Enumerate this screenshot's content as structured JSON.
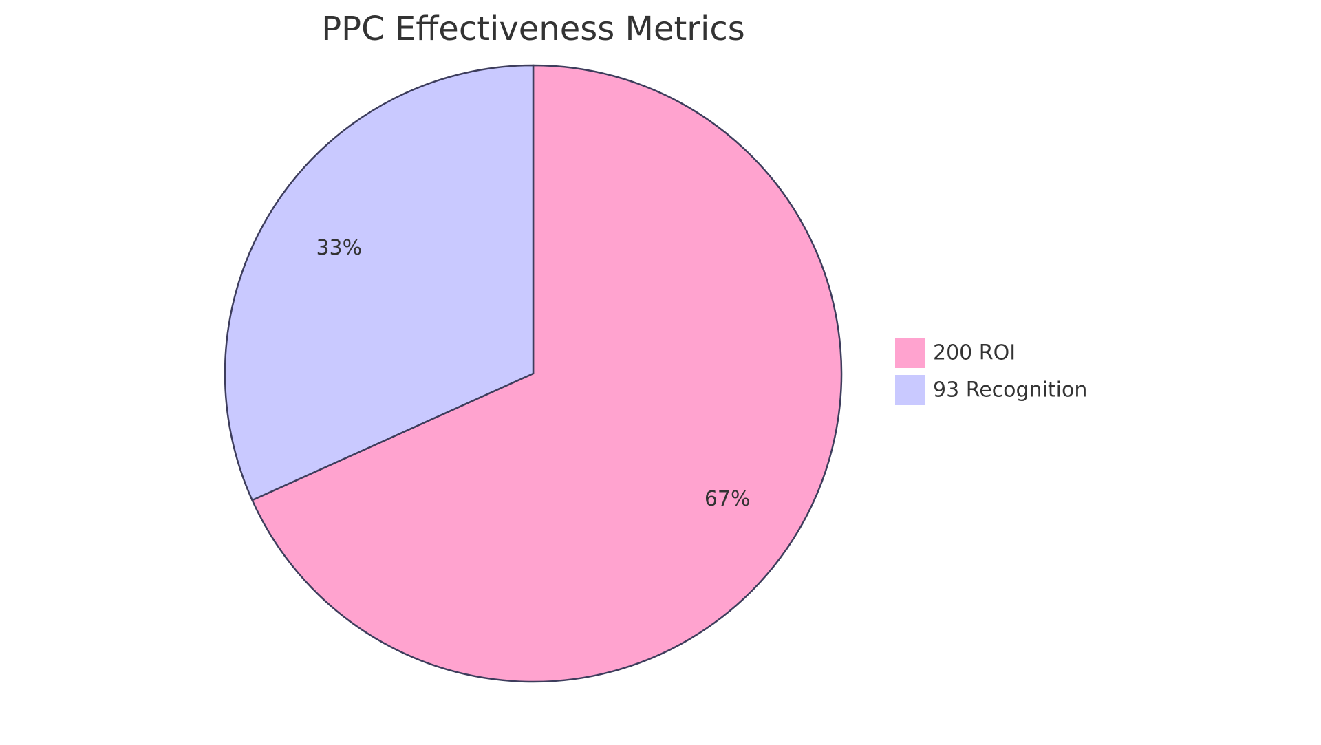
{
  "chart_data": {
    "type": "pie",
    "title": "PPC Effectiveness Metrics",
    "slices": [
      {
        "label": "ROI",
        "value": 200,
        "legend": "200 ROI",
        "percent_label": "67%",
        "color": "#ffa3cf"
      },
      {
        "label": "Recognition",
        "value": 93,
        "legend": "93 Recognition",
        "percent_label": "33%",
        "color": "#c9c9ff"
      }
    ],
    "stroke_color": "#3d3d5c",
    "legend_position": "right"
  }
}
